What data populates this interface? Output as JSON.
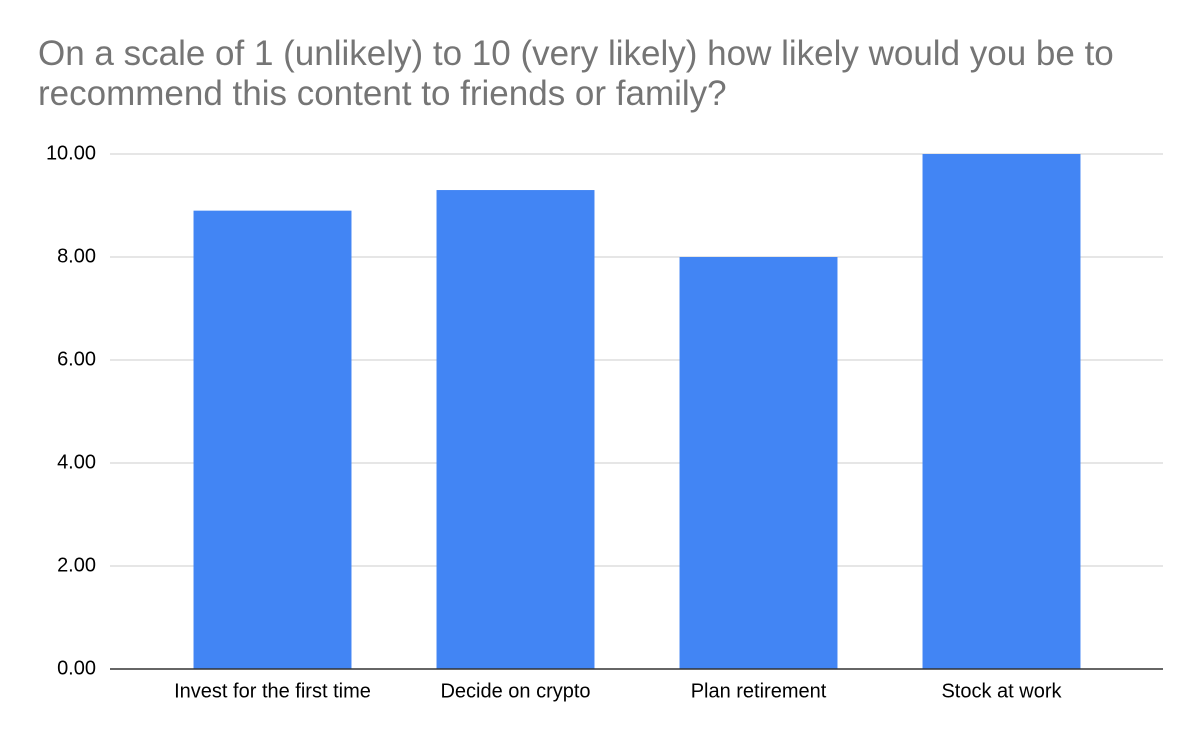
{
  "chart_data": {
    "type": "bar",
    "title": "On a scale of 1 (unlikely) to 10 (very likely) how likely would you be to recommend this content to friends or family?",
    "categories": [
      "Invest for the first time",
      "Decide on crypto",
      "Plan retirement",
      "Stock at work"
    ],
    "values": [
      8.9,
      9.3,
      8.0,
      10.0
    ],
    "color": "#4285f4",
    "ylim": [
      0,
      10
    ],
    "yticks": [
      {
        "value": 0,
        "label": "0.00"
      },
      {
        "value": 2,
        "label": "2.00"
      },
      {
        "value": 4,
        "label": "4.00"
      },
      {
        "value": 6,
        "label": "6.00"
      },
      {
        "value": 8,
        "label": "8.00"
      },
      {
        "value": 10,
        "label": "10.00"
      }
    ],
    "grid": true
  }
}
